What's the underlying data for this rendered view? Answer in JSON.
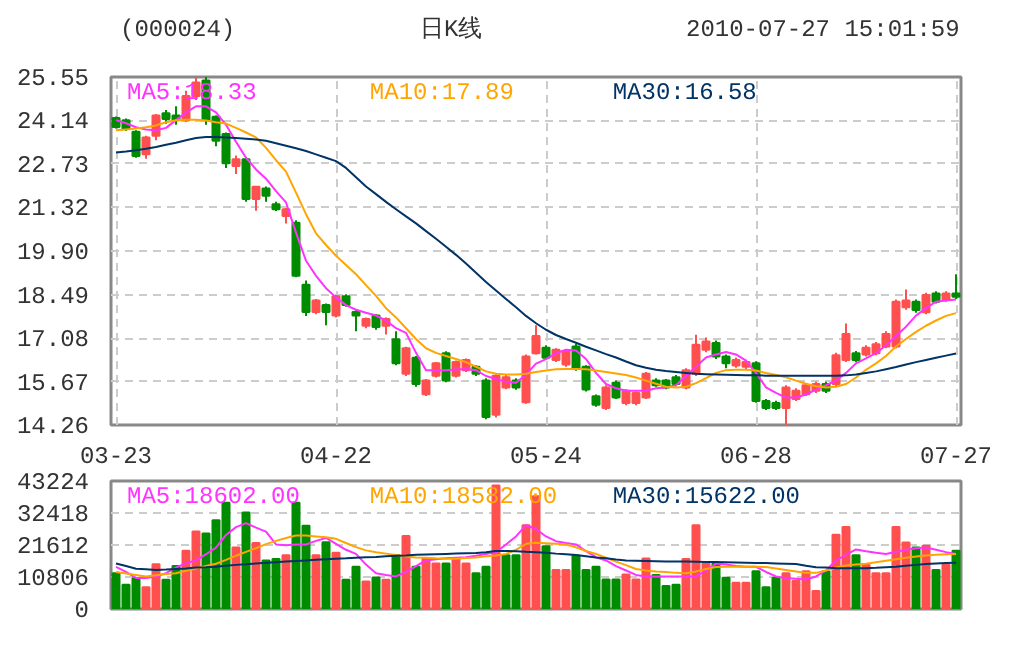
{
  "chart_data": [
    {
      "type": "candlestick",
      "title": "(000024)",
      "subtitle": "日K线",
      "annotations": [
        "2010-07-27 15:01:59"
      ],
      "categories": [
        "03-23",
        null,
        null,
        null,
        null,
        null,
        null,
        null,
        null,
        null,
        null,
        null,
        null,
        null,
        null,
        null,
        null,
        null,
        null,
        null,
        null,
        null,
        "04-22",
        null,
        null,
        null,
        null,
        null,
        null,
        null,
        null,
        null,
        null,
        null,
        null,
        null,
        null,
        null,
        null,
        null,
        null,
        null,
        null,
        "05-24",
        null,
        null,
        null,
        null,
        null,
        null,
        null,
        null,
        null,
        null,
        null,
        null,
        null,
        null,
        null,
        null,
        null,
        null,
        null,
        null,
        "06-28",
        null,
        null,
        null,
        null,
        null,
        null,
        null,
        null,
        null,
        null,
        null,
        null,
        null,
        null,
        null,
        null,
        null,
        null,
        null,
        "07-27"
      ],
      "ohlc": [
        [
          24.22,
          24.27,
          23.88,
          23.93
        ],
        [
          24.15,
          24.2,
          23.8,
          23.86
        ],
        [
          23.77,
          23.82,
          22.93,
          22.99
        ],
        [
          23.04,
          23.64,
          22.9,
          23.59
        ],
        [
          23.64,
          24.35,
          23.5,
          24.3
        ],
        [
          24.37,
          24.48,
          24.03,
          24.19
        ],
        [
          24.3,
          24.6,
          24.0,
          24.15
        ],
        [
          24.15,
          25.1,
          24.1,
          24.93
        ],
        [
          24.93,
          25.55,
          24.8,
          25.37
        ],
        [
          25.44,
          25.55,
          24.0,
          24.15
        ],
        [
          24.26,
          24.3,
          23.3,
          23.48
        ],
        [
          23.7,
          23.75,
          22.6,
          22.75
        ],
        [
          22.66,
          23.0,
          22.4,
          22.88
        ],
        [
          22.88,
          22.95,
          21.5,
          21.59
        ],
        [
          21.59,
          22.0,
          21.21,
          21.99
        ],
        [
          21.93,
          22.0,
          21.5,
          21.7
        ],
        [
          21.42,
          21.5,
          21.2,
          21.26
        ],
        [
          21.04,
          21.3,
          20.8,
          21.26
        ],
        [
          20.82,
          20.9,
          19.05,
          19.1
        ],
        [
          18.81,
          18.95,
          17.8,
          17.93
        ],
        [
          17.93,
          18.35,
          17.85,
          18.3
        ],
        [
          18.15,
          18.2,
          17.5,
          17.93
        ],
        [
          17.81,
          18.48,
          17.75,
          18.44
        ],
        [
          18.44,
          18.5,
          18.1,
          18.15
        ],
        [
          17.93,
          18.0,
          17.3,
          17.81
        ],
        [
          17.48,
          17.75,
          17.4,
          17.7
        ],
        [
          17.81,
          17.85,
          17.35,
          17.44
        ],
        [
          17.48,
          17.75,
          17.2,
          17.7
        ],
        [
          17.04,
          17.3,
          16.2,
          16.26
        ],
        [
          15.92,
          16.8,
          15.85,
          16.75
        ],
        [
          16.44,
          16.5,
          15.5,
          15.59
        ],
        [
          15.26,
          15.75,
          15.2,
          15.7
        ],
        [
          15.86,
          16.3,
          15.8,
          16.26
        ],
        [
          16.59,
          16.65,
          15.65,
          15.7
        ],
        [
          15.86,
          16.35,
          15.8,
          16.3
        ],
        [
          16.04,
          16.42,
          15.98,
          16.37
        ],
        [
          16.15,
          16.2,
          15.85,
          15.92
        ],
        [
          15.7,
          15.78,
          14.45,
          14.52
        ],
        [
          14.59,
          15.9,
          14.5,
          15.86
        ],
        [
          15.48,
          15.88,
          15.42,
          15.81
        ],
        [
          15.7,
          15.78,
          15.4,
          15.48
        ],
        [
          15.0,
          16.55,
          14.95,
          16.48
        ],
        [
          16.59,
          17.5,
          16.55,
          17.15
        ],
        [
          16.77,
          16.85,
          16.38,
          16.44
        ],
        [
          16.37,
          16.75,
          16.3,
          16.7
        ],
        [
          16.22,
          16.72,
          16.15,
          16.66
        ],
        [
          16.81,
          16.9,
          16.02,
          16.08
        ],
        [
          16.15,
          16.2,
          15.35,
          15.41
        ],
        [
          15.19,
          15.25,
          14.85,
          14.92
        ],
        [
          14.81,
          15.55,
          14.75,
          15.48
        ],
        [
          15.63,
          15.7,
          15.1,
          15.15
        ],
        [
          14.97,
          15.42,
          14.9,
          15.37
        ],
        [
          14.97,
          15.35,
          14.9,
          15.3
        ],
        [
          15.15,
          15.98,
          15.1,
          15.92
        ],
        [
          15.7,
          15.78,
          15.5,
          15.55
        ],
        [
          15.7,
          15.75,
          15.42,
          15.48
        ],
        [
          15.81,
          15.88,
          15.52,
          15.59
        ],
        [
          15.48,
          16.1,
          15.42,
          16.04
        ],
        [
          15.92,
          17.19,
          15.85,
          16.86
        ],
        [
          16.7,
          17.1,
          16.62,
          16.97
        ],
        [
          16.92,
          17.0,
          16.4,
          16.48
        ],
        [
          16.48,
          16.55,
          16.1,
          16.26
        ],
        [
          16.19,
          16.45,
          16.12,
          16.37
        ],
        [
          16.15,
          16.38,
          16.08,
          16.3
        ],
        [
          16.26,
          16.33,
          14.98,
          15.04
        ],
        [
          15.04,
          15.1,
          14.75,
          14.81
        ],
        [
          14.97,
          15.05,
          14.75,
          14.81
        ],
        [
          14.81,
          15.55,
          14.26,
          15.48
        ],
        [
          15.1,
          15.45,
          15.04,
          15.37
        ],
        [
          15.26,
          15.62,
          15.2,
          15.55
        ],
        [
          15.37,
          15.66,
          15.3,
          15.59
        ],
        [
          15.59,
          15.66,
          15.3,
          15.37
        ],
        [
          15.59,
          16.6,
          15.52,
          16.52
        ],
        [
          16.37,
          17.55,
          16.3,
          17.21
        ],
        [
          16.59,
          16.66,
          16.3,
          16.37
        ],
        [
          16.55,
          16.85,
          16.48,
          16.77
        ],
        [
          16.59,
          16.95,
          16.52,
          16.88
        ],
        [
          16.81,
          17.3,
          16.75,
          17.21
        ],
        [
          16.81,
          18.33,
          16.75,
          18.26
        ],
        [
          18.08,
          18.66,
          18.0,
          18.3
        ],
        [
          18.26,
          18.33,
          17.9,
          17.99
        ],
        [
          17.92,
          18.55,
          17.85,
          18.48
        ],
        [
          18.53,
          18.6,
          18.2,
          18.26
        ],
        [
          18.33,
          18.6,
          18.26,
          18.53
        ],
        [
          18.53,
          19.15,
          18.35,
          18.42
        ]
      ],
      "colors": [
        "#008c00",
        "#008c00",
        "#008c00",
        "#ff4f4f",
        "#ff4f4f",
        "#008c00",
        "#008c00",
        "#ff4f4f",
        "#ff4f4f",
        "#008c00",
        "#008c00",
        "#008c00",
        "#ff4f4f",
        "#008c00",
        "#ff4f4f",
        "#008c00",
        "#008c00",
        "#ff4f4f",
        "#008c00",
        "#008c00",
        "#ff4f4f",
        "#008c00",
        "#ff4f4f",
        "#008c00",
        "#008c00",
        "#ff4f4f",
        "#008c00",
        "#ff4f4f",
        "#008c00",
        "#ff4f4f",
        "#008c00",
        "#ff4f4f",
        "#ff4f4f",
        "#008c00",
        "#ff4f4f",
        "#ff4f4f",
        "#008c00",
        "#008c00",
        "#ff4f4f",
        "#ff4f4f",
        "#008c00",
        "#ff4f4f",
        "#ff4f4f",
        "#008c00",
        "#ff4f4f",
        "#ff4f4f",
        "#008c00",
        "#008c00",
        "#008c00",
        "#ff4f4f",
        "#008c00",
        "#ff4f4f",
        "#ff4f4f",
        "#ff4f4f",
        "#008c00",
        "#008c00",
        "#008c00",
        "#ff4f4f",
        "#ff4f4f",
        "#ff4f4f",
        "#008c00",
        "#008c00",
        "#ff4f4f",
        "#ff4f4f",
        "#008c00",
        "#008c00",
        "#008c00",
        "#ff4f4f",
        "#ff4f4f",
        "#ff4f4f",
        "#ff4f4f",
        "#008c00",
        "#ff4f4f",
        "#ff4f4f",
        "#008c00",
        "#ff4f4f",
        "#ff4f4f",
        "#ff4f4f",
        "#ff4f4f",
        "#ff4f4f",
        "#008c00",
        "#ff4f4f",
        "#008c00",
        "#ff4f4f",
        "#008c00"
      ],
      "series": [
        {
          "name": "MA5:18.33",
          "type": "line",
          "color": "#ff33ff",
          "values": [
            24.15,
            24.05,
            23.92,
            23.85,
            23.82,
            23.9,
            24.15,
            24.4,
            24.6,
            24.6,
            24.4,
            24.0,
            23.45,
            22.93,
            22.55,
            22.25,
            21.85,
            21.48,
            20.5,
            19.59,
            19.1,
            18.7,
            18.4,
            18.15,
            18.0,
            17.9,
            17.81,
            17.65,
            17.4,
            17.25,
            16.6,
            16.04,
            16.04,
            16.04,
            16.06,
            16.08,
            16.04,
            15.85,
            15.75,
            15.66,
            15.63,
            15.9,
            16.25,
            16.4,
            16.59,
            16.7,
            16.68,
            16.4,
            15.95,
            15.59,
            15.45,
            15.37,
            15.37,
            15.37,
            15.45,
            15.48,
            15.55,
            15.85,
            16.15,
            16.45,
            16.55,
            16.63,
            16.55,
            16.35,
            15.95,
            15.48,
            15.3,
            15.15,
            15.15,
            15.25,
            15.41,
            15.55,
            15.7,
            15.95,
            16.26,
            16.42,
            16.59,
            16.85,
            17.15,
            17.45,
            17.81,
            18.05,
            18.26,
            18.3,
            18.33
          ]
        },
        {
          "name": "MA10:17.89",
          "type": "line",
          "color": "#ffa500",
          "values": [
            23.82,
            23.85,
            23.88,
            23.92,
            23.98,
            24.08,
            24.15,
            24.16,
            24.16,
            24.14,
            24.08,
            24.04,
            23.9,
            23.75,
            23.59,
            23.25,
            22.85,
            22.48,
            21.8,
            21.1,
            20.48,
            20.1,
            19.75,
            19.45,
            19.15,
            18.8,
            18.45,
            18.05,
            17.75,
            17.4,
            17.05,
            16.75,
            16.6,
            16.5,
            16.4,
            16.3,
            16.15,
            16.0,
            15.92,
            15.9,
            15.9,
            15.92,
            15.98,
            16.03,
            16.07,
            16.08,
            16.08,
            16.07,
            16.03,
            15.98,
            15.93,
            15.88,
            15.8,
            15.7,
            15.6,
            15.5,
            15.48,
            15.5,
            15.62,
            15.78,
            15.95,
            16.04,
            16.05,
            16.05,
            16.03,
            15.95,
            15.88,
            15.81,
            15.7,
            15.6,
            15.52,
            15.48,
            15.5,
            15.59,
            15.8,
            16.05,
            16.26,
            16.5,
            16.81,
            17.05,
            17.28,
            17.48,
            17.65,
            17.8,
            17.89
          ]
        },
        {
          "name": "MA30:16.58",
          "type": "line",
          "color": "#003366",
          "values": [
            23.1,
            23.13,
            23.17,
            23.22,
            23.28,
            23.35,
            23.42,
            23.5,
            23.57,
            23.6,
            23.6,
            23.59,
            23.57,
            23.55,
            23.52,
            23.48,
            23.4,
            23.32,
            23.24,
            23.15,
            23.04,
            22.93,
            22.82,
            22.6,
            22.3,
            22.0,
            21.75,
            21.5,
            21.26,
            21.03,
            20.8,
            20.55,
            20.3,
            20.04,
            19.78,
            19.5,
            19.2,
            18.9,
            18.62,
            18.35,
            18.08,
            17.8,
            17.56,
            17.35,
            17.18,
            17.05,
            16.93,
            16.8,
            16.68,
            16.56,
            16.45,
            16.32,
            16.2,
            16.12,
            16.05,
            16.01,
            15.98,
            15.95,
            15.92,
            15.91,
            15.9,
            15.89,
            15.88,
            15.87,
            15.87,
            15.86,
            15.86,
            15.86,
            15.86,
            15.86,
            15.86,
            15.86,
            15.86,
            15.87,
            15.9,
            15.95,
            16.0,
            16.07,
            16.14,
            16.22,
            16.3,
            16.37,
            16.44,
            16.51,
            16.58
          ]
        }
      ],
      "ylim": [
        14.26,
        25.55
      ],
      "yticks": [
        14.26,
        15.67,
        17.08,
        18.49,
        {
          "value": 19.9,
          "label": "19.90"
        },
        21.32,
        22.73,
        24.14,
        25.55
      ],
      "grid": true,
      "legend": "top left"
    },
    {
      "type": "bar",
      "categories": [
        null,
        null,
        null,
        null,
        null,
        null,
        null,
        null,
        null,
        null,
        null,
        null,
        null,
        null,
        null,
        null,
        null,
        null,
        null,
        null,
        null,
        null,
        null,
        null,
        null,
        null,
        null,
        null,
        null,
        null,
        null,
        null,
        null,
        null,
        null,
        null,
        null,
        null,
        null,
        null,
        null,
        null,
        null,
        null,
        null,
        null,
        null,
        null,
        null,
        null,
        null,
        null,
        null,
        null,
        null,
        null,
        null,
        null,
        null,
        null,
        null,
        null,
        null,
        null,
        null,
        null,
        null,
        null,
        null,
        null,
        null,
        null,
        null,
        null,
        null,
        null,
        null,
        null,
        null,
        null,
        null,
        null,
        null,
        null,
        null
      ],
      "values": [
        12100,
        8200,
        10400,
        7350,
        15100,
        9900,
        14500,
        19700,
        26150,
        25500,
        30000,
        35900,
        20750,
        32600,
        22300,
        16400,
        16900,
        18150,
        35900,
        28100,
        18150,
        22500,
        19000,
        9900,
        14250,
        9300,
        10600,
        9900,
        18150,
        24650,
        14250,
        16850,
        15350,
        15350,
        16850,
        15350,
        12100,
        14250,
        41700,
        18150,
        18150,
        28300,
        38040,
        21180,
        13180,
        13180,
        17940,
        13180,
        14260,
        9940,
        9940,
        11670,
        9940,
        17070,
        11450,
        7780,
        8210,
        16860,
        28310,
        15340,
        15340,
        10590,
        8860,
        8860,
        12750,
        7350,
        10590,
        12100,
        9510,
        12750,
        6050,
        12750,
        25070,
        27660,
        18150,
        14910,
        12100,
        12100,
        27660,
        22480,
        20750,
        21400,
        13180,
        14910,
        19670
      ],
      "colors": [
        "#008c00",
        "#008c00",
        "#008c00",
        "#ff4f4f",
        "#ff4f4f",
        "#008c00",
        "#008c00",
        "#ff4f4f",
        "#ff4f4f",
        "#008c00",
        "#008c00",
        "#008c00",
        "#ff4f4f",
        "#008c00",
        "#ff4f4f",
        "#008c00",
        "#008c00",
        "#ff4f4f",
        "#008c00",
        "#008c00",
        "#ff4f4f",
        "#008c00",
        "#ff4f4f",
        "#008c00",
        "#008c00",
        "#ff4f4f",
        "#008c00",
        "#ff4f4f",
        "#008c00",
        "#ff4f4f",
        "#008c00",
        "#ff4f4f",
        "#ff4f4f",
        "#008c00",
        "#ff4f4f",
        "#ff4f4f",
        "#008c00",
        "#008c00",
        "#ff4f4f",
        "#008c00",
        "#008c00",
        "#ff4f4f",
        "#ff4f4f",
        "#008c00",
        "#ff4f4f",
        "#ff4f4f",
        "#008c00",
        "#008c00",
        "#008c00",
        "#008c00",
        "#008c00",
        "#ff4f4f",
        "#ff4f4f",
        "#ff4f4f",
        "#008c00",
        "#008c00",
        "#008c00",
        "#ff4f4f",
        "#ff4f4f",
        "#ff4f4f",
        "#008c00",
        "#008c00",
        "#ff4f4f",
        "#ff4f4f",
        "#008c00",
        "#008c00",
        "#008c00",
        "#ff4f4f",
        "#ff4f4f",
        "#ff4f4f",
        "#ff4f4f",
        "#008c00",
        "#ff4f4f",
        "#ff4f4f",
        "#008c00",
        "#ff4f4f",
        "#ff4f4f",
        "#ff4f4f",
        "#ff4f4f",
        "#ff4f4f",
        "#008c00",
        "#ff4f4f",
        "#008c00",
        "#ff4f4f",
        "#008c00"
      ],
      "series": [
        {
          "name": "MA5:18602.00",
          "type": "line",
          "color": "#ff33ff",
          "values": [
            14260,
            12500,
            10500,
            10500,
            11000,
            12100,
            14000,
            15500,
            16400,
            18500,
            20750,
            25000,
            27660,
            29000,
            27500,
            26150,
            21800,
            21500,
            21800,
            21800,
            23000,
            24000,
            22000,
            20000,
            18600,
            15000,
            12100,
            11500,
            11000,
            12500,
            14500,
            16400,
            16800,
            17100,
            17300,
            17500,
            18000,
            18600,
            19200,
            21800,
            24500,
            28300,
            27000,
            24500,
            22900,
            22300,
            21800,
            19500,
            17500,
            16400,
            14500,
            13000,
            11500,
            11000,
            11000,
            11000,
            11000,
            11000,
            11000,
            13000,
            15350,
            15000,
            14500,
            14300,
            14260,
            12500,
            11000,
            10500,
            10200,
            9940,
            11000,
            13000,
            16400,
            18300,
            20100,
            19500,
            19000,
            18600,
            19300,
            20000,
            20500,
            20750,
            20000,
            19200,
            18602
          ]
        },
        {
          "name": "MA10:18582.00",
          "type": "line",
          "color": "#ffa500",
          "values": [
            12500,
            12000,
            11500,
            11000,
            11400,
            11800,
            12100,
            12900,
            13700,
            14500,
            15300,
            16600,
            18000,
            19300,
            20500,
            21900,
            23000,
            24000,
            24800,
            24800,
            24500,
            24200,
            23700,
            22300,
            20900,
            19800,
            19200,
            18700,
            18200,
            17700,
            17400,
            17300,
            17100,
            17000,
            17000,
            17200,
            17400,
            17800,
            18100,
            18600,
            20000,
            22000,
            22400,
            22200,
            22000,
            21800,
            20800,
            19600,
            18600,
            17300,
            16000,
            14800,
            13500,
            13000,
            12700,
            12500,
            12200,
            12100,
            12700,
            13500,
            14200,
            14260,
            14260,
            14260,
            14260,
            14200,
            13700,
            13200,
            12700,
            12200,
            12200,
            13000,
            14000,
            14700,
            15000,
            15300,
            15800,
            16300,
            16800,
            17300,
            17700,
            18100,
            18300,
            18450,
            18582
          ]
        },
        {
          "name": "MA30:15622.00",
          "type": "line",
          "color": "#003366",
          "values": [
            15350,
            14500,
            13600,
            13400,
            13200,
            13300,
            13500,
            13700,
            14000,
            14100,
            14300,
            14600,
            14900,
            15100,
            15400,
            15600,
            15800,
            16000,
            16200,
            16400,
            16600,
            16800,
            17000,
            17100,
            17300,
            17500,
            17600,
            17800,
            18000,
            18100,
            18300,
            18400,
            18500,
            18600,
            18700,
            18800,
            18900,
            19200,
            19600,
            19600,
            19500,
            19300,
            19200,
            19000,
            18700,
            18500,
            18200,
            17800,
            17400,
            17100,
            16700,
            16400,
            16300,
            16200,
            16100,
            16000,
            16000,
            16000,
            15950,
            15900,
            15900,
            15800,
            15700,
            15600,
            15550,
            15500,
            15400,
            15300,
            15200,
            14600,
            14100,
            14000,
            13800,
            13800,
            13800,
            13800,
            13900,
            14100,
            14300,
            14600,
            14900,
            15200,
            15350,
            15500,
            15622
          ]
        }
      ],
      "ylim": [
        0,
        43224
      ],
      "yticks": [
        0,
        10806,
        21612,
        32418,
        43224
      ],
      "grid": "y",
      "legend": "top left",
      "tick_labels": "y"
    }
  ]
}
